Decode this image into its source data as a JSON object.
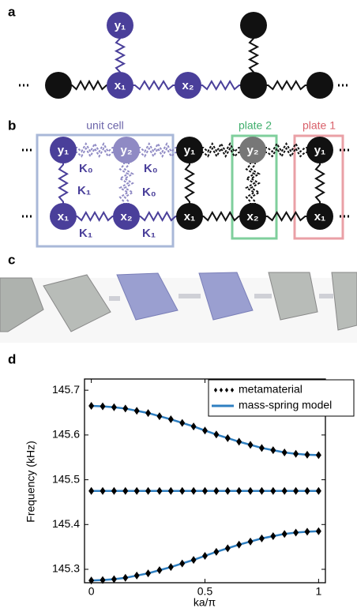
{
  "panel_labels": [
    "a",
    "b",
    "c",
    "d"
  ],
  "panel_a": {
    "nodes": [
      "y₁",
      "x₁",
      "x₂"
    ]
  },
  "panel_b": {
    "boxes": [
      "unit cell",
      "plate 2",
      "plate 1"
    ],
    "nodes": [
      "y₁",
      "y₂",
      "x₁",
      "x₂",
      "y₁",
      "x₁",
      "y₂",
      "x₂",
      "y₁",
      "x₁"
    ],
    "springs": [
      "K₀",
      "K₀",
      "K₀",
      "K₁",
      "K₁",
      "K₁"
    ]
  },
  "chart_data": {
    "type": "line",
    "xlabel": "ka/π",
    "ylabel": "Frequency (kHz)",
    "x": [
      0,
      0.05,
      0.1,
      0.15,
      0.2,
      0.25,
      0.3,
      0.35,
      0.4,
      0.45,
      0.5,
      0.55,
      0.6,
      0.65,
      0.7,
      0.75,
      0.8,
      0.85,
      0.9,
      0.95,
      1
    ],
    "xlim": [
      -0.03,
      1.03
    ],
    "xticks": [
      0,
      0.5,
      1
    ],
    "ylim": [
      145.27,
      145.725
    ],
    "yticks": [
      145.3,
      145.4,
      145.5,
      145.6,
      145.7
    ],
    "legend": "upper right",
    "series": [
      {
        "name": "metamaterial",
        "color": "#000000",
        "bands": [
          [
            145.665,
            145.664,
            145.662,
            145.659,
            145.654,
            145.649,
            145.642,
            145.635,
            145.627,
            145.619,
            145.61,
            145.601,
            145.593,
            145.585,
            145.578,
            145.571,
            145.566,
            145.561,
            145.558,
            145.556,
            145.555
          ],
          [
            145.475,
            145.475,
            145.475,
            145.475,
            145.475,
            145.475,
            145.475,
            145.475,
            145.475,
            145.475,
            145.475,
            145.475,
            145.475,
            145.475,
            145.475,
            145.475,
            145.475,
            145.475,
            145.475,
            145.475,
            145.475
          ],
          [
            145.275,
            145.276,
            145.278,
            145.281,
            145.286,
            145.291,
            145.298,
            145.305,
            145.313,
            145.321,
            145.33,
            145.339,
            145.347,
            145.355,
            145.362,
            145.369,
            145.374,
            145.379,
            145.382,
            145.384,
            145.385
          ]
        ]
      },
      {
        "name": "mass-spring model",
        "color": "#2f7fc1",
        "bands": [
          [
            145.665,
            145.664,
            145.662,
            145.659,
            145.654,
            145.649,
            145.642,
            145.635,
            145.627,
            145.619,
            145.61,
            145.601,
            145.593,
            145.585,
            145.578,
            145.571,
            145.566,
            145.561,
            145.558,
            145.556,
            145.555
          ],
          [
            145.475,
            145.475,
            145.475,
            145.475,
            145.475,
            145.475,
            145.475,
            145.475,
            145.475,
            145.475,
            145.475,
            145.475,
            145.475,
            145.475,
            145.475,
            145.475,
            145.475,
            145.475,
            145.475,
            145.475,
            145.475
          ],
          [
            145.275,
            145.276,
            145.278,
            145.281,
            145.286,
            145.291,
            145.298,
            145.305,
            145.313,
            145.321,
            145.33,
            145.339,
            145.347,
            145.355,
            145.362,
            145.369,
            145.374,
            145.379,
            145.382,
            145.384,
            145.385
          ]
        ]
      }
    ]
  }
}
